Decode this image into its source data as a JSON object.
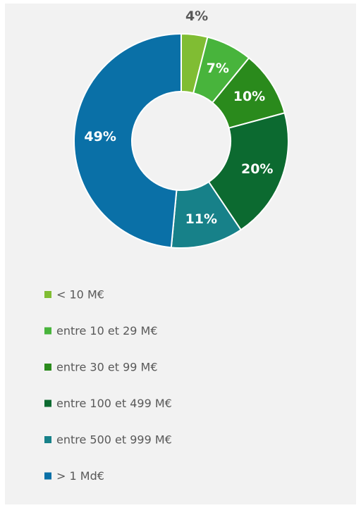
{
  "chart_data": {
    "type": "donut",
    "categories": [
      "< 10 M€",
      "entre 10 et 29 M€",
      "entre 30 et 99 M€",
      "entre 100 et 499 M€",
      "entre 500 et 999 M€",
      "> 1 Md€"
    ],
    "values": [
      4,
      7,
      10,
      20,
      11,
      49
    ],
    "value_labels": [
      "4%",
      "7%",
      "10%",
      "20%",
      "11%",
      "49%"
    ],
    "colors": [
      "#80bd33",
      "#48b43c",
      "#2a8a1c",
      "#0c6a30",
      "#178189",
      "#0a70a7"
    ]
  }
}
